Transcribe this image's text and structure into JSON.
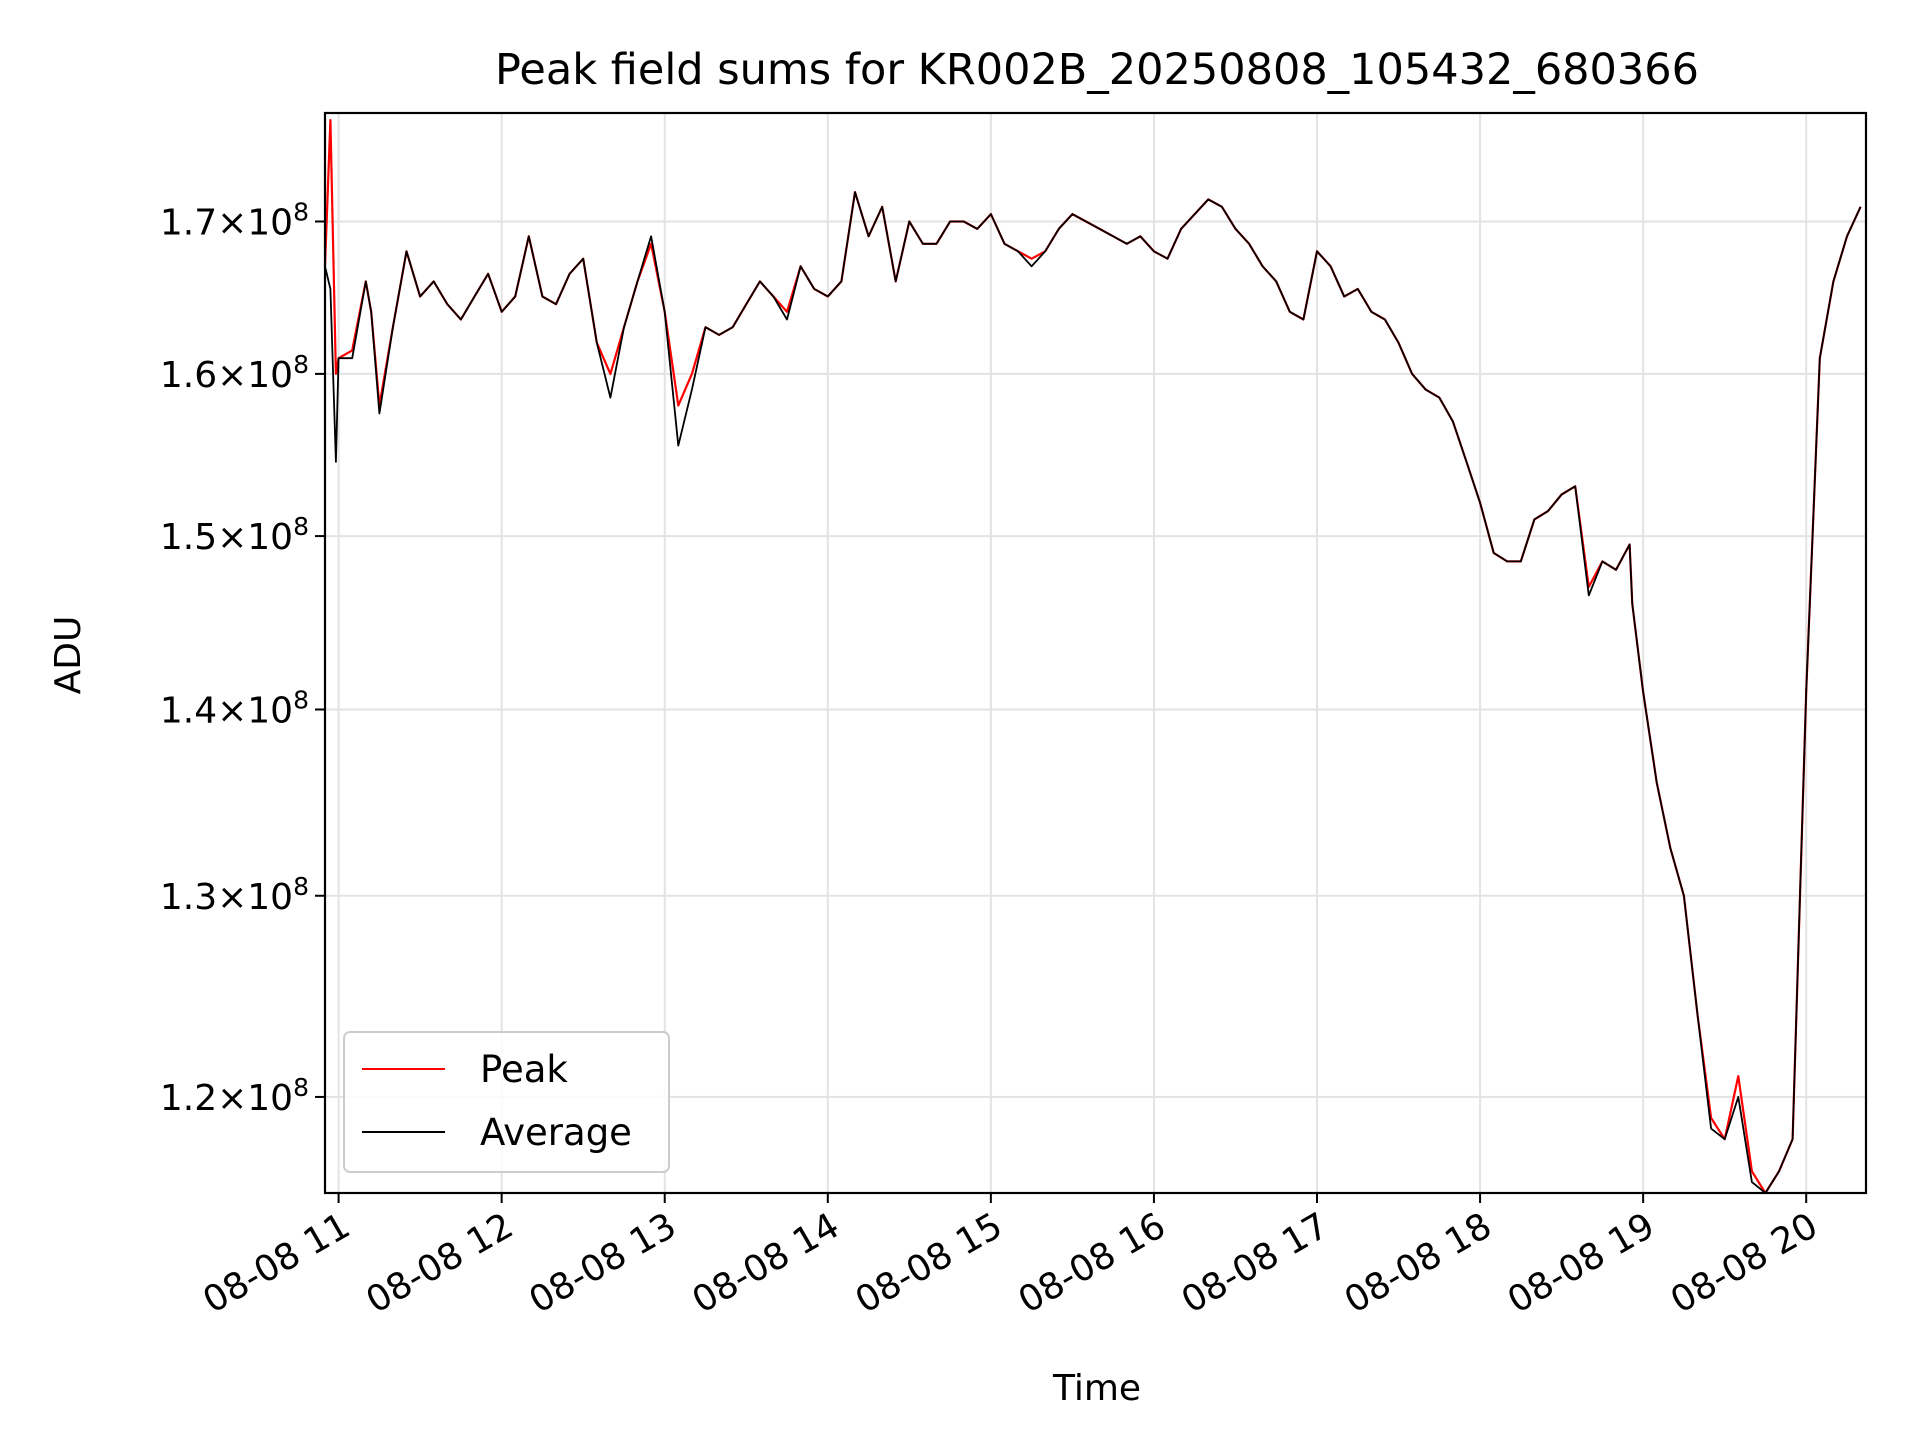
{
  "chart_data": {
    "type": "line",
    "title": "Peak field sums for KR002B_20250808_105432_680366",
    "xlabel": "Time",
    "ylabel": "ADU",
    "yscale": "log",
    "ylim": [
      115500000,
      177500000
    ],
    "xlim": [
      "08-08 10:55",
      "08-08 20:22"
    ],
    "grid": true,
    "legend_position": "lower-left",
    "x_ticks": [
      "08-08 11",
      "08-08 12",
      "08-08 13",
      "08-08 14",
      "08-08 15",
      "08-08 16",
      "08-08 17",
      "08-08 18",
      "08-08 19",
      "08-08 20"
    ],
    "y_ticks": [
      {
        "value": 120000000,
        "mantissa": "1.2",
        "exp": "8"
      },
      {
        "value": 130000000,
        "mantissa": "1.3",
        "exp": "8"
      },
      {
        "value": 140000000,
        "mantissa": "1.4",
        "exp": "8"
      },
      {
        "value": 150000000,
        "mantissa": "1.5",
        "exp": "8"
      },
      {
        "value": 160000000,
        "mantissa": "1.6",
        "exp": "8"
      },
      {
        "value": 170000000,
        "mantissa": "1.7",
        "exp": "8"
      }
    ],
    "x": [
      "08-08 10:55",
      "08-08 10:57",
      "08-08 10:59",
      "08-08 11:00",
      "08-08 11:05",
      "08-08 11:10",
      "08-08 11:12",
      "08-08 11:15",
      "08-08 11:20",
      "08-08 11:25",
      "08-08 11:30",
      "08-08 11:35",
      "08-08 11:40",
      "08-08 11:45",
      "08-08 11:50",
      "08-08 11:55",
      "08-08 12:00",
      "08-08 12:05",
      "08-08 12:10",
      "08-08 12:15",
      "08-08 12:20",
      "08-08 12:25",
      "08-08 12:30",
      "08-08 12:35",
      "08-08 12:40",
      "08-08 12:45",
      "08-08 12:50",
      "08-08 12:55",
      "08-08 13:00",
      "08-08 13:05",
      "08-08 13:10",
      "08-08 13:15",
      "08-08 13:20",
      "08-08 13:25",
      "08-08 13:30",
      "08-08 13:35",
      "08-08 13:40",
      "08-08 13:45",
      "08-08 13:50",
      "08-08 13:55",
      "08-08 14:00",
      "08-08 14:05",
      "08-08 14:10",
      "08-08 14:15",
      "08-08 14:20",
      "08-08 14:25",
      "08-08 14:30",
      "08-08 14:35",
      "08-08 14:40",
      "08-08 14:45",
      "08-08 14:50",
      "08-08 14:55",
      "08-08 15:00",
      "08-08 15:05",
      "08-08 15:10",
      "08-08 15:15",
      "08-08 15:20",
      "08-08 15:25",
      "08-08 15:30",
      "08-08 15:35",
      "08-08 15:40",
      "08-08 15:45",
      "08-08 15:50",
      "08-08 15:55",
      "08-08 16:00",
      "08-08 16:05",
      "08-08 16:10",
      "08-08 16:15",
      "08-08 16:20",
      "08-08 16:25",
      "08-08 16:30",
      "08-08 16:35",
      "08-08 16:40",
      "08-08 16:45",
      "08-08 16:50",
      "08-08 16:55",
      "08-08 17:00",
      "08-08 17:05",
      "08-08 17:10",
      "08-08 17:15",
      "08-08 17:20",
      "08-08 17:25",
      "08-08 17:30",
      "08-08 17:35",
      "08-08 17:40",
      "08-08 17:45",
      "08-08 17:50",
      "08-08 17:55",
      "08-08 18:00",
      "08-08 18:05",
      "08-08 18:10",
      "08-08 18:15",
      "08-08 18:20",
      "08-08 18:25",
      "08-08 18:30",
      "08-08 18:35",
      "08-08 18:40",
      "08-08 18:45",
      "08-08 18:50",
      "08-08 18:55",
      "08-08 18:56",
      "08-08 19:00",
      "08-08 19:05",
      "08-08 19:10",
      "08-08 19:15",
      "08-08 19:20",
      "08-08 19:25",
      "08-08 19:30",
      "08-08 19:35",
      "08-08 19:40",
      "08-08 19:45",
      "08-08 19:50",
      "08-08 19:55",
      "08-08 20:00",
      "08-08 20:05",
      "08-08 20:10",
      "08-08 20:15",
      "08-08 20:20"
    ],
    "series": [
      {
        "name": "Peak",
        "color": "#ff0000",
        "values": [
          167000000,
          177000000,
          160000000,
          161000000,
          161500000,
          166000000,
          164000000,
          158000000,
          163000000,
          168000000,
          165000000,
          166000000,
          164500000,
          163500000,
          165000000,
          166500000,
          164000000,
          165000000,
          169000000,
          165000000,
          164500000,
          166500000,
          167500000,
          162000000,
          160000000,
          163000000,
          166000000,
          168500000,
          164000000,
          158000000,
          160000000,
          163000000,
          162500000,
          163000000,
          164500000,
          166000000,
          165000000,
          164000000,
          167000000,
          165500000,
          165000000,
          166000000,
          172000000,
          169000000,
          171000000,
          166000000,
          170000000,
          168500000,
          168500000,
          170000000,
          170000000,
          169500000,
          170500000,
          168500000,
          168000000,
          167500000,
          168000000,
          169500000,
          170500000,
          170000000,
          169500000,
          169000000,
          168500000,
          169000000,
          168000000,
          167500000,
          169500000,
          170500000,
          171500000,
          171000000,
          169500000,
          168500000,
          167000000,
          166000000,
          164000000,
          163500000,
          168000000,
          167000000,
          165000000,
          165500000,
          164000000,
          163500000,
          162000000,
          160000000,
          159000000,
          158500000,
          157000000,
          154500000,
          152000000,
          149000000,
          148500000,
          148500000,
          151000000,
          151500000,
          152500000,
          153000000,
          147000000,
          148500000,
          148000000,
          149500000,
          146000000,
          141000000,
          136000000,
          132500000,
          130000000,
          124000000,
          119000000,
          118000000,
          121000000,
          116500000,
          115500000,
          116500000,
          118000000,
          141000000,
          161000000,
          166000000,
          169000000,
          171000000
        ]
      },
      {
        "name": "Average",
        "color": "#000000",
        "values": [
          167000000,
          165500000,
          154500000,
          161000000,
          161000000,
          166000000,
          164000000,
          157500000,
          163000000,
          168000000,
          165000000,
          166000000,
          164500000,
          163500000,
          165000000,
          166500000,
          164000000,
          165000000,
          169000000,
          165000000,
          164500000,
          166500000,
          167500000,
          162000000,
          158500000,
          163000000,
          166000000,
          169000000,
          164000000,
          155500000,
          159000000,
          163000000,
          162500000,
          163000000,
          164500000,
          166000000,
          165000000,
          163500000,
          167000000,
          165500000,
          165000000,
          166000000,
          172000000,
          169000000,
          171000000,
          166000000,
          170000000,
          168500000,
          168500000,
          170000000,
          170000000,
          169500000,
          170500000,
          168500000,
          168000000,
          167000000,
          168000000,
          169500000,
          170500000,
          170000000,
          169500000,
          169000000,
          168500000,
          169000000,
          168000000,
          167500000,
          169500000,
          170500000,
          171500000,
          171000000,
          169500000,
          168500000,
          167000000,
          166000000,
          164000000,
          163500000,
          168000000,
          167000000,
          165000000,
          165500000,
          164000000,
          163500000,
          162000000,
          160000000,
          159000000,
          158500000,
          157000000,
          154500000,
          152000000,
          149000000,
          148500000,
          148500000,
          151000000,
          151500000,
          152500000,
          153000000,
          146500000,
          148500000,
          148000000,
          149500000,
          146000000,
          141000000,
          136000000,
          132500000,
          130000000,
          124000000,
          118500000,
          118000000,
          120000000,
          116000000,
          115300000,
          116500000,
          118000000,
          141000000,
          161000000,
          166000000,
          169000000,
          171000000
        ]
      }
    ]
  }
}
